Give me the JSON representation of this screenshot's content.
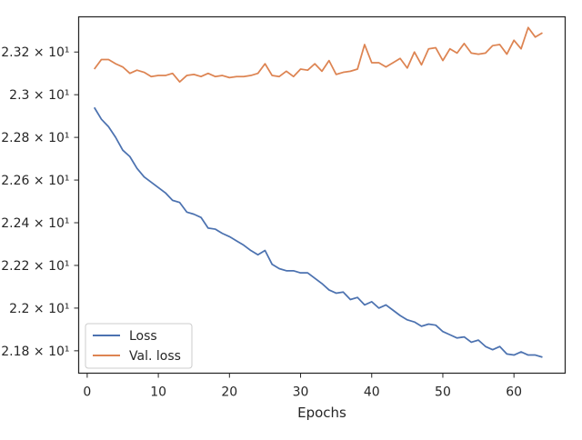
{
  "chart_data": {
    "type": "line",
    "xlabel": "Epochs",
    "ylabel": "",
    "title": "",
    "xlim": [
      -1.2,
      67.2
    ],
    "ylim": [
      21.695,
      23.365
    ],
    "xticks": [
      {
        "value": 0,
        "label": "0"
      },
      {
        "value": 10,
        "label": "10"
      },
      {
        "value": 20,
        "label": "20"
      },
      {
        "value": 30,
        "label": "30"
      },
      {
        "value": 40,
        "label": "40"
      },
      {
        "value": 50,
        "label": "50"
      },
      {
        "value": 60,
        "label": "60"
      }
    ],
    "yticks": [
      {
        "value": 21.8,
        "label": "2.18 × 10¹"
      },
      {
        "value": 22.0,
        "label": "2.2 × 10¹"
      },
      {
        "value": 22.2,
        "label": "2.22 × 10¹"
      },
      {
        "value": 22.4,
        "label": "2.24 × 10¹"
      },
      {
        "value": 22.6,
        "label": "2.26 × 10¹"
      },
      {
        "value": 22.8,
        "label": "2.28 × 10¹"
      },
      {
        "value": 23.0,
        "label": "2.3 × 10¹"
      },
      {
        "value": 23.2,
        "label": "2.32 × 10¹"
      }
    ],
    "legend_position": "bottom-left",
    "series": [
      {
        "name": "Loss",
        "color": "#4c72b0",
        "x": [
          1,
          2,
          3,
          4,
          5,
          6,
          7,
          8,
          9,
          10,
          11,
          12,
          13,
          14,
          15,
          16,
          17,
          18,
          19,
          20,
          21,
          22,
          23,
          24,
          25,
          26,
          27,
          28,
          29,
          30,
          31,
          32,
          33,
          34,
          35,
          36,
          37,
          38,
          39,
          40,
          41,
          42,
          43,
          44,
          45,
          46,
          47,
          48,
          49,
          50,
          51,
          52,
          53,
          54,
          55,
          56,
          57,
          58,
          59,
          60,
          61,
          62,
          63,
          64
        ],
        "values": [
          22.94,
          22.885,
          22.85,
          22.8,
          22.74,
          22.71,
          22.655,
          22.615,
          22.59,
          22.565,
          22.54,
          22.505,
          22.495,
          22.45,
          22.44,
          22.425,
          22.375,
          22.37,
          22.35,
          22.335,
          22.315,
          22.295,
          22.27,
          22.25,
          22.27,
          22.205,
          22.185,
          22.175,
          22.175,
          22.165,
          22.165,
          22.14,
          22.115,
          22.085,
          22.07,
          22.075,
          22.04,
          22.05,
          22.015,
          22.03,
          22.0,
          22.015,
          21.99,
          21.965,
          21.945,
          21.935,
          21.915,
          21.925,
          21.92,
          21.89,
          21.875,
          21.86,
          21.865,
          21.84,
          21.85,
          21.82,
          21.805,
          21.82,
          21.785,
          21.78,
          21.795,
          21.78,
          21.78,
          21.77
        ]
      },
      {
        "name": "Val. loss",
        "color": "#dd8452",
        "x": [
          1,
          2,
          3,
          4,
          5,
          6,
          7,
          8,
          9,
          10,
          11,
          12,
          13,
          14,
          15,
          16,
          17,
          18,
          19,
          20,
          21,
          22,
          23,
          24,
          25,
          26,
          27,
          28,
          29,
          30,
          31,
          32,
          33,
          34,
          35,
          36,
          37,
          38,
          39,
          40,
          41,
          42,
          43,
          44,
          45,
          46,
          47,
          48,
          49,
          50,
          51,
          52,
          53,
          54,
          55,
          56,
          57,
          58,
          59,
          60,
          61,
          62,
          63,
          64
        ],
        "values": [
          23.12,
          23.165,
          23.165,
          23.145,
          23.13,
          23.1,
          23.115,
          23.105,
          23.085,
          23.09,
          23.09,
          23.1,
          23.06,
          23.09,
          23.095,
          23.085,
          23.1,
          23.085,
          23.09,
          23.08,
          23.085,
          23.085,
          23.09,
          23.1,
          23.145,
          23.09,
          23.085,
          23.11,
          23.085,
          23.12,
          23.115,
          23.145,
          23.11,
          23.16,
          23.095,
          23.105,
          23.11,
          23.12,
          23.235,
          23.15,
          23.15,
          23.13,
          23.15,
          23.17,
          23.125,
          23.2,
          23.14,
          23.215,
          23.22,
          23.16,
          23.215,
          23.195,
          23.24,
          23.195,
          23.19,
          23.195,
          23.23,
          23.235,
          23.19,
          23.255,
          23.215,
          23.315,
          23.27,
          23.29
        ]
      }
    ]
  }
}
